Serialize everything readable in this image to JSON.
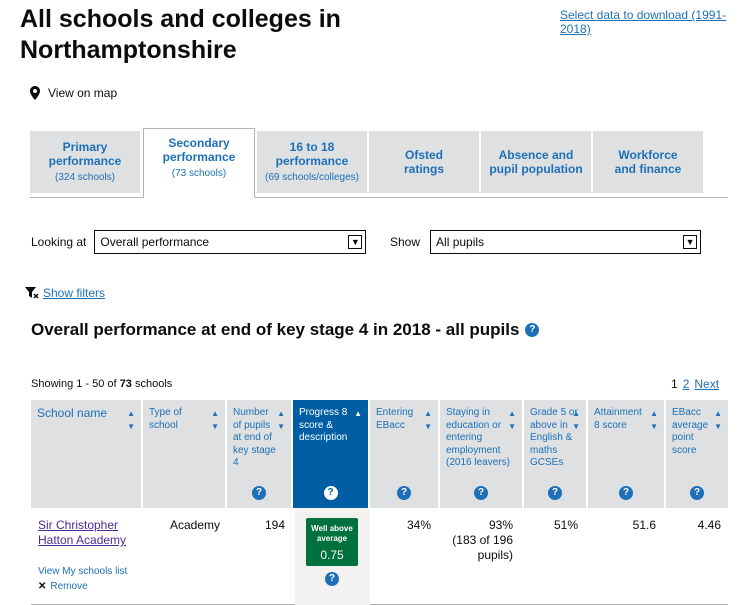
{
  "page": {
    "title": "All schools and colleges in Northamptonshire",
    "download_link": "Select data to download (1991-2018)",
    "map_link": "View on map"
  },
  "tabs": [
    {
      "label": "Primary performance",
      "sub": "(324 schools)",
      "active": false
    },
    {
      "label": "Secondary performance",
      "sub": "(73 schools)",
      "active": true
    },
    {
      "label": "16 to 18 performance",
      "sub": "(69 schools/colleges)",
      "active": false
    },
    {
      "label": "Ofsted ratings",
      "sub": "",
      "active": false
    },
    {
      "label": "Absence and pupil population",
      "sub": "",
      "active": false
    },
    {
      "label": "Workforce and finance",
      "sub": "",
      "active": false
    }
  ],
  "filters": {
    "looking_at_label": "Looking at",
    "looking_at_value": "Overall performance",
    "show_label": "Show",
    "show_value": "All pupils",
    "show_filters_link": "Show filters"
  },
  "section": {
    "title": "Overall performance at end of key stage 4 in 2018 - all pupils"
  },
  "results": {
    "showing_prefix": "Showing 1 - 50 of",
    "total": "73",
    "suffix": "schools"
  },
  "pager": {
    "page1": "1",
    "page2": "2",
    "next": "Next"
  },
  "table": {
    "columns": [
      {
        "label": "School name",
        "help": false
      },
      {
        "label": "Type of school",
        "help": false
      },
      {
        "label": "Number of pupils at end of key stage 4",
        "help": true
      },
      {
        "label": "Progress 8 score & description",
        "help": true,
        "sorted": true
      },
      {
        "label": "Entering EBacc",
        "help": true
      },
      {
        "label": "Staying in education or entering employment (2016 leavers)",
        "help": true
      },
      {
        "label": "Grade 5 or above in English & maths GCSEs",
        "help": true
      },
      {
        "label": "Attainment 8 score",
        "help": true
      },
      {
        "label": "EBacc average point score",
        "help": true
      }
    ],
    "rows": [
      {
        "school_name": "Sir Christopher Hatton Academy",
        "type": "Academy",
        "pupils": "194",
        "progress_desc": "Well above average",
        "progress_score": "0.75",
        "ebacc": "34%",
        "staying": "93%",
        "staying_detail": "(183 of 196 pupils)",
        "grade5": "51%",
        "attainment8": "51.6",
        "ebacc_aps": "4.46",
        "my_schools_link": "View My schools list",
        "remove_link": "Remove"
      }
    ]
  },
  "colors": {
    "link": "#1d70b8",
    "header_bg": "#dee0e2",
    "sorted_header_bg": "#005ea5",
    "badge_green": "#00703c",
    "visited_link": "#4c2c92"
  }
}
